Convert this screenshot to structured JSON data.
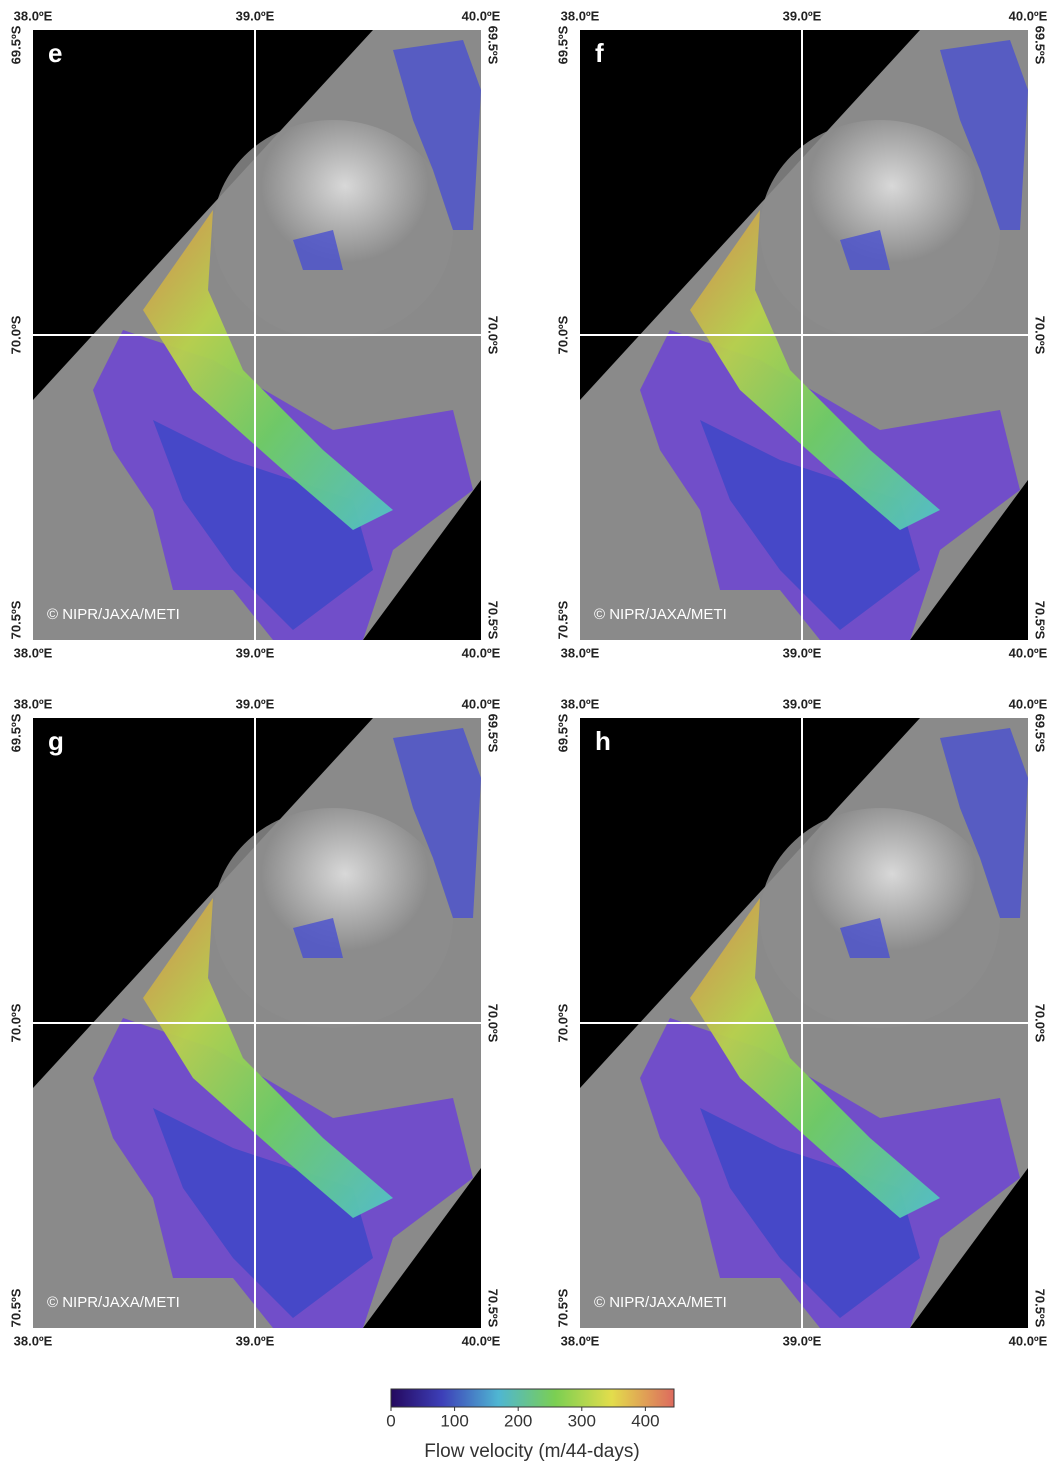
{
  "panels": [
    {
      "label": "e",
      "copyright": "© NIPR/JAXA/METI",
      "lon_labels": [
        "38.0ºE",
        "39.0ºE",
        "40.0ºE"
      ],
      "lat_labels": [
        "69.5ºS",
        "70.0ºS",
        "70.5ºS"
      ]
    },
    {
      "label": "f",
      "copyright": "© NIPR/JAXA/METI",
      "lon_labels": [
        "38.0ºE",
        "39.0ºE",
        "40.0ºE"
      ],
      "lat_labels": [
        "69.5ºS",
        "70.0ºS",
        "70.5ºS"
      ]
    },
    {
      "label": "g",
      "copyright": "© NIPR/JAXA/METI",
      "lon_labels": [
        "38.0ºE",
        "39.0ºE",
        "40.0ºE"
      ],
      "lat_labels": [
        "69.5ºS",
        "70.0ºS",
        "70.5ºS"
      ]
    },
    {
      "label": "h",
      "copyright": "© NIPR/JAXA/METI",
      "lon_labels": [
        "38.0ºE",
        "39.0ºE",
        "40.0ºE"
      ],
      "lat_labels": [
        "69.5ºS",
        "70.0ºS",
        "70.5ºS"
      ]
    }
  ],
  "colorbar": {
    "label": "Flow velocity (m/44-days)",
    "lim": [
      0,
      445
    ],
    "ticks": [
      0,
      100,
      200,
      300,
      400
    ]
  }
}
